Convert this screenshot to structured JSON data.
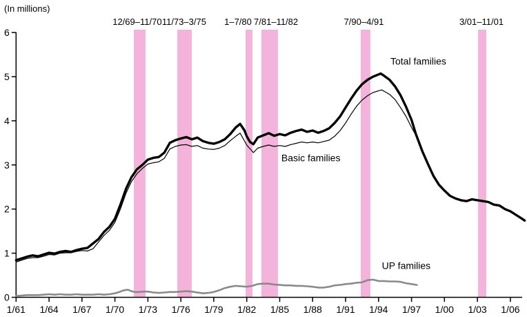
{
  "colors": {
    "background": "#ffffff",
    "band_pink": "#F3B3DA",
    "axis_black": "#000000",
    "total_line": "#000000",
    "basic_line": "#000000",
    "up_line": "#8a8a8a"
  },
  "chart_data": {
    "type": "line",
    "title": "",
    "units_label": "(In millions)",
    "ylabel": "",
    "xlabel": "",
    "ylim": [
      0,
      6
    ],
    "y_ticks": [
      0,
      1,
      2,
      3,
      4,
      5,
      6
    ],
    "x_tick_labels": [
      "1/61",
      "1/64",
      "1/67",
      "1/70",
      "1/73",
      "1/76",
      "1/79",
      "1/82",
      "1/85",
      "1/88",
      "1/91",
      "1/94",
      "1/97",
      "1/00",
      "1/03",
      "1/06"
    ],
    "x_tick_years": [
      1961,
      1964,
      1967,
      1970,
      1973,
      1976,
      1979,
      1982,
      1985,
      1988,
      1991,
      1994,
      1997,
      2000,
      2003,
      2006
    ],
    "x_range_years": [
      1961,
      2007.4
    ],
    "grid": false,
    "legend_position": "inline-annotations",
    "recession_bands": [
      {
        "label": "12/69–11/70",
        "plot_start": 1971.72,
        "plot_end": 1972.79,
        "label_anchor": 1972.03
      },
      {
        "label": "11/73–3/75",
        "plot_start": 1975.68,
        "plot_end": 1977.0,
        "label_anchor": 1976.3
      },
      {
        "label": "1–7/80",
        "plot_start": 1981.89,
        "plot_end": 1982.52,
        "label_anchor": 1981.2
      },
      {
        "label": "7/81–11/82",
        "plot_start": 1983.34,
        "plot_end": 1984.84,
        "label_anchor": 1984.66
      },
      {
        "label": "7/90–4/91",
        "plot_start": 1992.38,
        "plot_end": 1993.26,
        "label_anchor": 1992.66
      },
      {
        "label": "3/01–11/01",
        "plot_start": 2003.06,
        "plot_end": 2003.81,
        "label_anchor": 2003.37
      }
    ],
    "annotations": [
      {
        "text": "Total families",
        "x": 1995.08,
        "y": 5.27
      },
      {
        "text": "Basic families",
        "x": 1985.15,
        "y": 3.08
      },
      {
        "text": "UP families",
        "x": 1994.3,
        "y": 0.64
      }
    ],
    "series": [
      {
        "name": "Total families",
        "color": "#000000",
        "stroke_width": 3.4,
        "points": [
          [
            1961,
            0.84
          ],
          [
            1961.5,
            0.88
          ],
          [
            1962,
            0.92
          ],
          [
            1962.5,
            0.95
          ],
          [
            1963,
            0.93
          ],
          [
            1963.5,
            0.97
          ],
          [
            1964,
            1.01
          ],
          [
            1964.5,
            0.99
          ],
          [
            1965,
            1.03
          ],
          [
            1965.5,
            1.05
          ],
          [
            1966,
            1.03
          ],
          [
            1966.5,
            1.07
          ],
          [
            1967,
            1.1
          ],
          [
            1967.5,
            1.12
          ],
          [
            1968,
            1.22
          ],
          [
            1968.5,
            1.32
          ],
          [
            1969,
            1.48
          ],
          [
            1969.5,
            1.6
          ],
          [
            1970,
            1.78
          ],
          [
            1970.5,
            2.1
          ],
          [
            1971,
            2.45
          ],
          [
            1971.5,
            2.72
          ],
          [
            1972,
            2.9
          ],
          [
            1972.5,
            3.0
          ],
          [
            1973,
            3.12
          ],
          [
            1973.5,
            3.16
          ],
          [
            1974,
            3.18
          ],
          [
            1974.5,
            3.28
          ],
          [
            1975,
            3.5
          ],
          [
            1975.5,
            3.56
          ],
          [
            1976,
            3.6
          ],
          [
            1976.5,
            3.63
          ],
          [
            1977,
            3.58
          ],
          [
            1977.5,
            3.62
          ],
          [
            1978,
            3.54
          ],
          [
            1978.5,
            3.5
          ],
          [
            1979,
            3.48
          ],
          [
            1979.5,
            3.52
          ],
          [
            1980,
            3.58
          ],
          [
            1980.5,
            3.7
          ],
          [
            1981,
            3.85
          ],
          [
            1981.4,
            3.93
          ],
          [
            1981.8,
            3.78
          ],
          [
            1982,
            3.65
          ],
          [
            1982.3,
            3.52
          ],
          [
            1982.6,
            3.47
          ],
          [
            1983,
            3.62
          ],
          [
            1983.5,
            3.67
          ],
          [
            1984,
            3.72
          ],
          [
            1984.5,
            3.66
          ],
          [
            1985,
            3.7
          ],
          [
            1985.5,
            3.67
          ],
          [
            1986,
            3.73
          ],
          [
            1986.5,
            3.77
          ],
          [
            1987,
            3.8
          ],
          [
            1987.5,
            3.75
          ],
          [
            1988,
            3.78
          ],
          [
            1988.5,
            3.73
          ],
          [
            1989,
            3.77
          ],
          [
            1989.5,
            3.83
          ],
          [
            1990,
            3.95
          ],
          [
            1990.5,
            4.1
          ],
          [
            1991,
            4.3
          ],
          [
            1991.5,
            4.5
          ],
          [
            1992,
            4.68
          ],
          [
            1992.5,
            4.83
          ],
          [
            1993,
            4.93
          ],
          [
            1993.5,
            5.0
          ],
          [
            1994,
            5.05
          ],
          [
            1994.2,
            5.07
          ],
          [
            1994.5,
            5.02
          ],
          [
            1995,
            4.93
          ],
          [
            1995.5,
            4.78
          ],
          [
            1996,
            4.58
          ],
          [
            1996.5,
            4.32
          ],
          [
            1997,
            4.02
          ],
          [
            1997.4,
            3.7
          ],
          [
            1998,
            3.3
          ],
          [
            1998.5,
            3.02
          ],
          [
            1999,
            2.75
          ],
          [
            1999.5,
            2.55
          ],
          [
            2000,
            2.42
          ],
          [
            2000.5,
            2.3
          ],
          [
            2001,
            2.24
          ],
          [
            2001.5,
            2.2
          ],
          [
            2002,
            2.18
          ],
          [
            2002.5,
            2.22
          ],
          [
            2003,
            2.2
          ],
          [
            2003.5,
            2.18
          ],
          [
            2004,
            2.16
          ],
          [
            2004.5,
            2.1
          ],
          [
            2005,
            2.08
          ],
          [
            2005.5,
            2.0
          ],
          [
            2006,
            1.95
          ],
          [
            2006.5,
            1.87
          ],
          [
            2007,
            1.79
          ],
          [
            2007.3,
            1.74
          ]
        ]
      },
      {
        "name": "Basic families",
        "color": "#000000",
        "stroke_width": 1.2,
        "points": [
          [
            1961,
            0.8
          ],
          [
            1961.5,
            0.84
          ],
          [
            1962,
            0.88
          ],
          [
            1962.5,
            0.9
          ],
          [
            1963,
            0.9
          ],
          [
            1963.5,
            0.93
          ],
          [
            1964,
            0.97
          ],
          [
            1964.5,
            0.96
          ],
          [
            1965,
            1.0
          ],
          [
            1965.5,
            1.01
          ],
          [
            1966,
            1.01
          ],
          [
            1966.5,
            1.04
          ],
          [
            1967,
            1.06
          ],
          [
            1967.5,
            1.05
          ],
          [
            1968,
            1.1
          ],
          [
            1968.5,
            1.25
          ],
          [
            1969,
            1.4
          ],
          [
            1969.5,
            1.52
          ],
          [
            1970,
            1.7
          ],
          [
            1970.5,
            2.0
          ],
          [
            1971,
            2.35
          ],
          [
            1971.5,
            2.62
          ],
          [
            1972,
            2.8
          ],
          [
            1972.5,
            2.92
          ],
          [
            1973,
            3.02
          ],
          [
            1973.5,
            3.05
          ],
          [
            1974,
            3.07
          ],
          [
            1974.5,
            3.15
          ],
          [
            1975,
            3.36
          ],
          [
            1975.5,
            3.42
          ],
          [
            1976,
            3.45
          ],
          [
            1976.5,
            3.46
          ],
          [
            1977,
            3.42
          ],
          [
            1977.5,
            3.44
          ],
          [
            1978,
            3.38
          ],
          [
            1978.5,
            3.36
          ],
          [
            1979,
            3.35
          ],
          [
            1979.5,
            3.38
          ],
          [
            1980,
            3.44
          ],
          [
            1980.5,
            3.55
          ],
          [
            1981,
            3.65
          ],
          [
            1981.4,
            3.72
          ],
          [
            1982,
            3.45
          ],
          [
            1982.6,
            3.28
          ],
          [
            1983,
            3.38
          ],
          [
            1983.5,
            3.42
          ],
          [
            1984,
            3.45
          ],
          [
            1984.5,
            3.42
          ],
          [
            1985,
            3.44
          ],
          [
            1985.5,
            3.42
          ],
          [
            1986,
            3.46
          ],
          [
            1986.5,
            3.49
          ],
          [
            1987,
            3.52
          ],
          [
            1987.5,
            3.5
          ],
          [
            1988,
            3.52
          ],
          [
            1988.5,
            3.5
          ],
          [
            1989,
            3.53
          ],
          [
            1989.5,
            3.56
          ],
          [
            1990,
            3.65
          ],
          [
            1990.5,
            3.78
          ],
          [
            1991,
            3.95
          ],
          [
            1991.5,
            4.15
          ],
          [
            1992,
            4.33
          ],
          [
            1992.5,
            4.47
          ],
          [
            1993,
            4.57
          ],
          [
            1993.5,
            4.64
          ],
          [
            1994,
            4.68
          ],
          [
            1994.3,
            4.7
          ],
          [
            1994.5,
            4.67
          ],
          [
            1995,
            4.6
          ],
          [
            1995.5,
            4.48
          ],
          [
            1996,
            4.3
          ],
          [
            1996.5,
            4.1
          ],
          [
            1997,
            3.85
          ],
          [
            1997.4,
            3.67
          ]
        ]
      },
      {
        "name": "UP families",
        "color": "#8a8a8a",
        "stroke_width": 2.6,
        "points": [
          [
            1961,
            0.03
          ],
          [
            1961.5,
            0.04
          ],
          [
            1962,
            0.05
          ],
          [
            1962.5,
            0.05
          ],
          [
            1963,
            0.05
          ],
          [
            1963.5,
            0.06
          ],
          [
            1964,
            0.07
          ],
          [
            1964.5,
            0.06
          ],
          [
            1965,
            0.07
          ],
          [
            1965.5,
            0.06
          ],
          [
            1966,
            0.06
          ],
          [
            1966.5,
            0.07
          ],
          [
            1967,
            0.06
          ],
          [
            1967.5,
            0.06
          ],
          [
            1968,
            0.06
          ],
          [
            1968.5,
            0.07
          ],
          [
            1969,
            0.06
          ],
          [
            1969.5,
            0.07
          ],
          [
            1970,
            0.09
          ],
          [
            1970.5,
            0.13
          ],
          [
            1970.8,
            0.16
          ],
          [
            1971.2,
            0.17
          ],
          [
            1971.5,
            0.14
          ],
          [
            1971.8,
            0.12
          ],
          [
            1972.2,
            0.12
          ],
          [
            1972.6,
            0.13
          ],
          [
            1973,
            0.13
          ],
          [
            1973.5,
            0.11
          ],
          [
            1974,
            0.1
          ],
          [
            1974.5,
            0.11
          ],
          [
            1975,
            0.12
          ],
          [
            1975.5,
            0.12
          ],
          [
            1976,
            0.13
          ],
          [
            1976.5,
            0.14
          ],
          [
            1977,
            0.13
          ],
          [
            1977.5,
            0.11
          ],
          [
            1978,
            0.09
          ],
          [
            1978.5,
            0.1
          ],
          [
            1979,
            0.12
          ],
          [
            1979.5,
            0.16
          ],
          [
            1980,
            0.21
          ],
          [
            1980.5,
            0.24
          ],
          [
            1981,
            0.26
          ],
          [
            1981.5,
            0.25
          ],
          [
            1982,
            0.24
          ],
          [
            1982.5,
            0.26
          ],
          [
            1983,
            0.3
          ],
          [
            1983.5,
            0.31
          ],
          [
            1984,
            0.31
          ],
          [
            1984.5,
            0.29
          ],
          [
            1985,
            0.28
          ],
          [
            1985.5,
            0.27
          ],
          [
            1986,
            0.27
          ],
          [
            1986.5,
            0.26
          ],
          [
            1987,
            0.26
          ],
          [
            1987.5,
            0.25
          ],
          [
            1988,
            0.24
          ],
          [
            1988.5,
            0.22
          ],
          [
            1989,
            0.22
          ],
          [
            1989.5,
            0.24
          ],
          [
            1990,
            0.27
          ],
          [
            1990.5,
            0.28
          ],
          [
            1991,
            0.3
          ],
          [
            1991.5,
            0.31
          ],
          [
            1992,
            0.33
          ],
          [
            1992.5,
            0.34
          ],
          [
            1993,
            0.39
          ],
          [
            1993.5,
            0.4
          ],
          [
            1994,
            0.37
          ],
          [
            1994.5,
            0.37
          ],
          [
            1995,
            0.36
          ],
          [
            1995.5,
            0.36
          ],
          [
            1996,
            0.35
          ],
          [
            1996.5,
            0.32
          ],
          [
            1997,
            0.3
          ],
          [
            1997.5,
            0.28
          ]
        ]
      }
    ]
  }
}
